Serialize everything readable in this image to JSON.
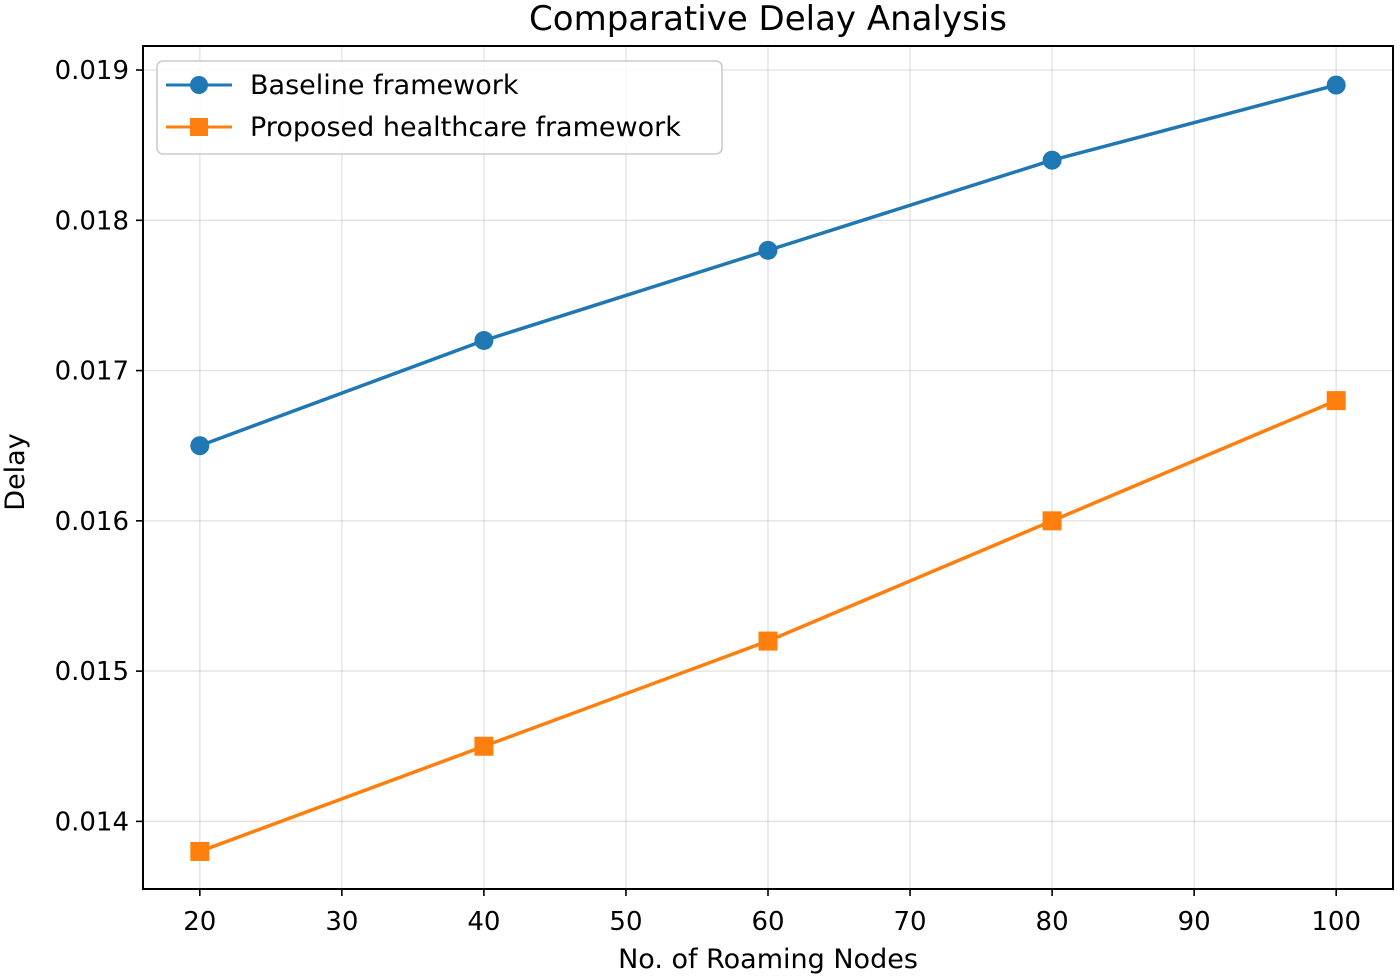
{
  "chart_data": {
    "type": "line",
    "title": "Comparative Delay Analysis",
    "xlabel": "No. of Roaming Nodes",
    "ylabel": "Delay",
    "x": [
      20,
      40,
      60,
      80,
      100
    ],
    "xlim": [
      16,
      104
    ],
    "ylim": [
      0.01355,
      0.01916
    ],
    "xticks": [
      20,
      30,
      40,
      50,
      60,
      70,
      80,
      90,
      100
    ],
    "xtick_labels": [
      "20",
      "30",
      "40",
      "50",
      "60",
      "70",
      "80",
      "90",
      "100"
    ],
    "yticks": [
      0.014,
      0.015,
      0.016,
      0.017,
      0.018,
      0.019
    ],
    "ytick_labels": [
      "0.014",
      "0.015",
      "0.016",
      "0.017",
      "0.018",
      "0.019"
    ],
    "grid": true,
    "legend_position": "top-left",
    "series": [
      {
        "name": "Baseline framework",
        "values": [
          0.0165,
          0.0172,
          0.0178,
          0.0184,
          0.0189
        ],
        "color": "#1f77b4",
        "marker": "circle"
      },
      {
        "name": "Proposed healthcare framework",
        "values": [
          0.0138,
          0.0145,
          0.0152,
          0.016,
          0.0168
        ],
        "color": "#ff7f0e",
        "marker": "square"
      }
    ]
  }
}
